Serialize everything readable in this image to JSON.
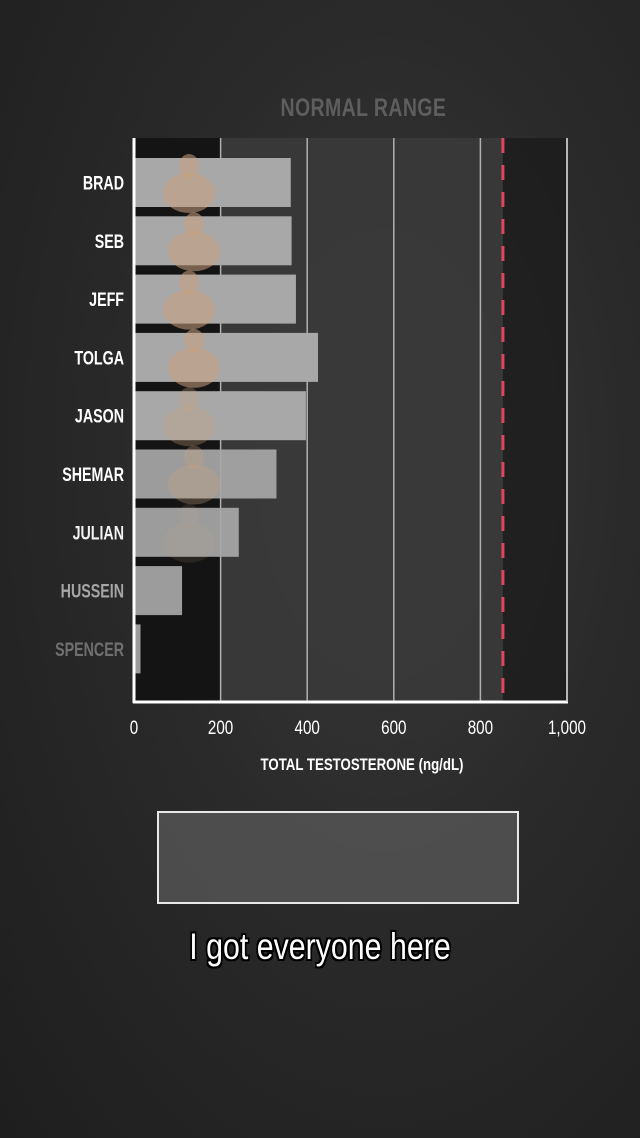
{
  "chart_data": {
    "type": "bar",
    "orientation": "horizontal",
    "categories": [
      "BRAD",
      "SEB",
      "JEFF",
      "TOLGA",
      "JASON",
      "SHEMAR",
      "JULIAN",
      "HUSSEIN",
      "SPENCER"
    ],
    "values": [
      362,
      364,
      374,
      425,
      397,
      329,
      242,
      111,
      15
    ],
    "xlabel": "TOTAL TESTOSTERONE (ng/dL)",
    "xlim": [
      0,
      1000
    ],
    "xticks": [
      "0",
      "200",
      "400",
      "600",
      "800",
      "1,000"
    ],
    "xtick_values": [
      0,
      200,
      400,
      600,
      800,
      1000
    ],
    "grid": true,
    "normal_range": {
      "label": "NORMAL RANGE",
      "from": 200,
      "to": 852
    },
    "reference_line": {
      "value": 852,
      "style": "dashed",
      "color": "#e0455e"
    },
    "colors": {
      "bar": "#a8a8a8",
      "range_shade": "#3a3a3a",
      "label": "#ffffff"
    }
  },
  "caption": "I got everyone here"
}
